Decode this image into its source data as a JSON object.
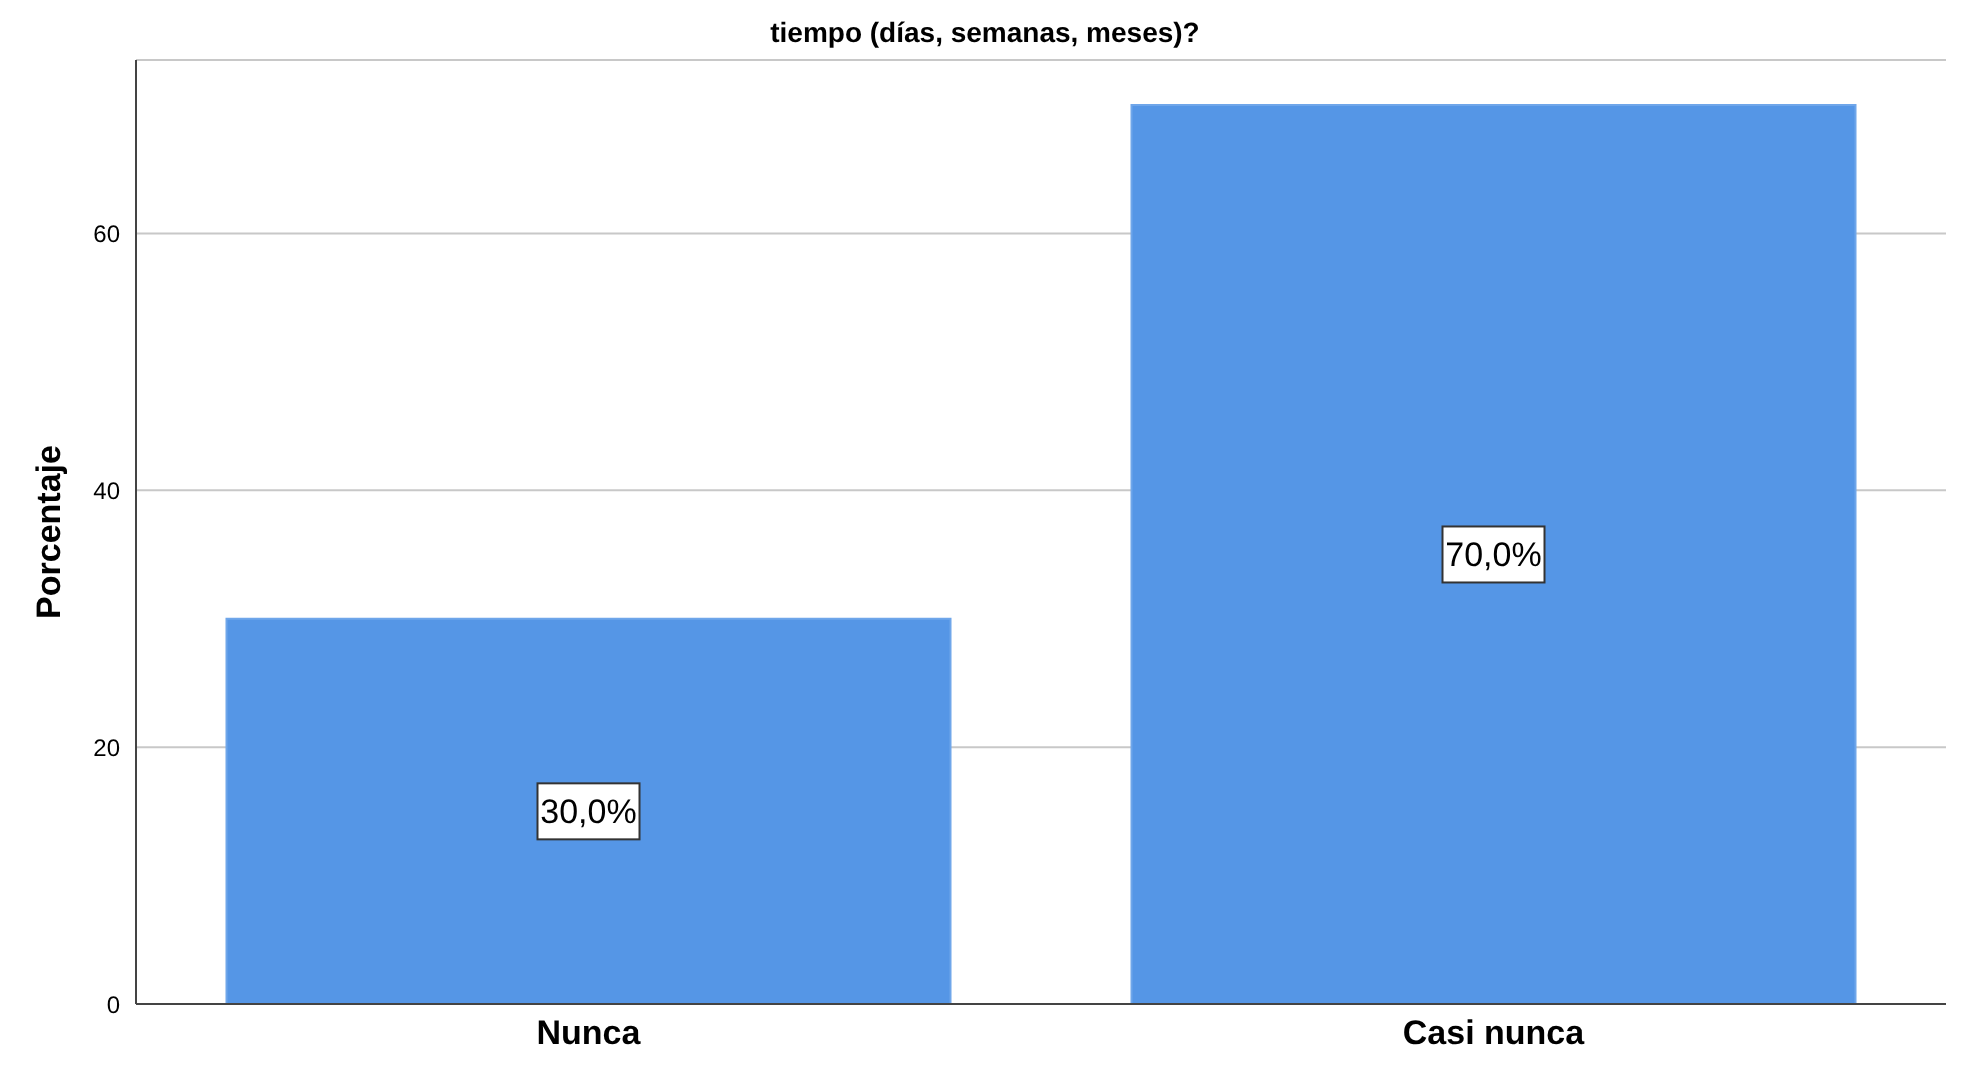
{
  "chart_data": {
    "type": "bar",
    "title": "tiempo (días, semanas, meses)?",
    "ylabel": "Porcentaje",
    "categories": [
      "Nunca",
      "Casi nunca"
    ],
    "values": [
      30,
      70
    ],
    "color": "#5596e6",
    "value_labels": [
      "30,0%",
      "70,0%"
    ],
    "ylim": [
      0,
      73.5
    ],
    "yticks": [
      0,
      20,
      40,
      60
    ],
    "grid": "y"
  }
}
